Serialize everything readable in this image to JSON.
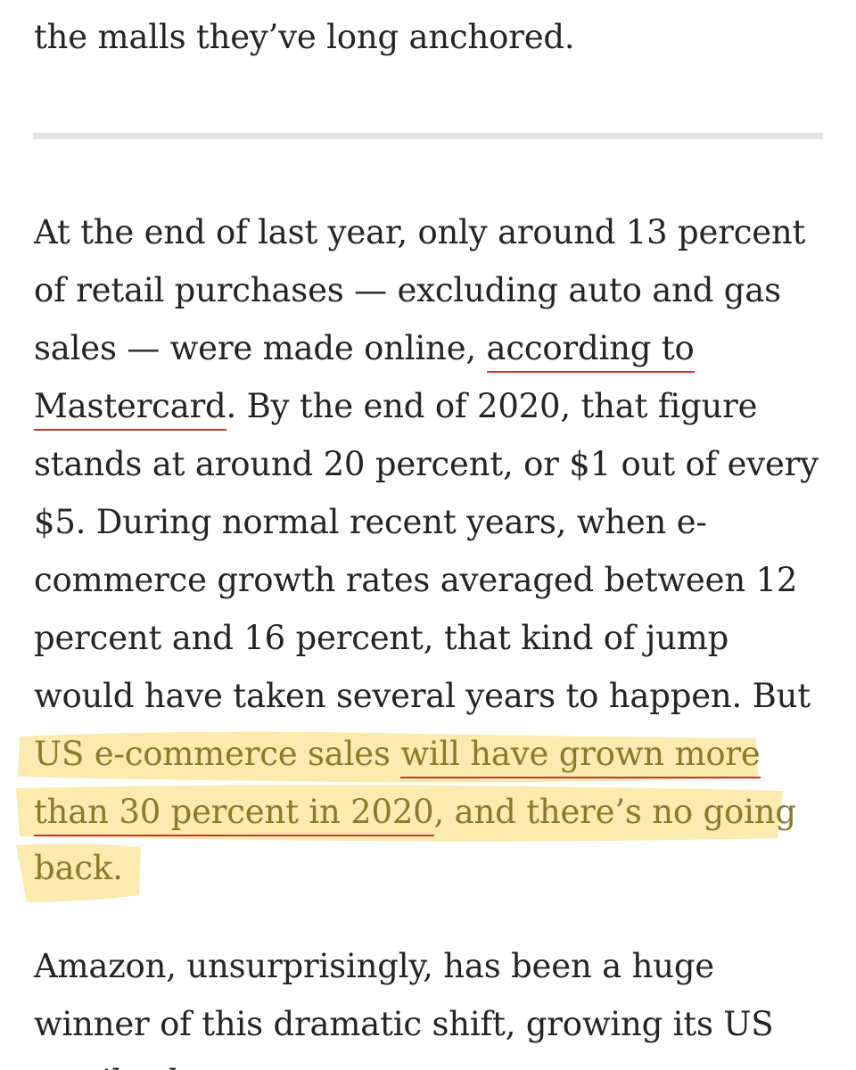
{
  "article": {
    "prev_paragraph_end": "the malls they’ve long anchored.",
    "p1": {
      "l1": "At the end of last year, only around 13 percent",
      "l2": "of retail purchases — excluding auto and gas",
      "l3_text": "sales — were made online, ",
      "l3_link": "according to",
      "l4_link": "Mastercard",
      "l4_text": ". By the end of 2020, that figure",
      "l5": "stands at around 20 percent, or $1 out of every",
      "l6": "$5. During normal recent years, when e-",
      "l7": "commerce growth rates averaged between 12",
      "l8": "percent and 16 percent, that kind of jump",
      "l9": "would have taken several years to happen. But",
      "h1_text": "US e-commerce sales ",
      "h1_link": "will have grown more",
      "h2_link": "than 30 percent in 2020",
      "h2_text": ", and there’s no going",
      "h3_text": "back."
    },
    "p2": {
      "l1": "Amazon, unsurprisingly, has been a huge",
      "l2": "winner of this dramatic shift, growing its US",
      "l3": "retail sales ..."
    }
  },
  "colors": {
    "text": "#242424",
    "link_underline": "#c0392b",
    "highlight": "#fbe7a1",
    "highlighted_text": "#8a7a2c",
    "divider": "#e3e3e3"
  }
}
